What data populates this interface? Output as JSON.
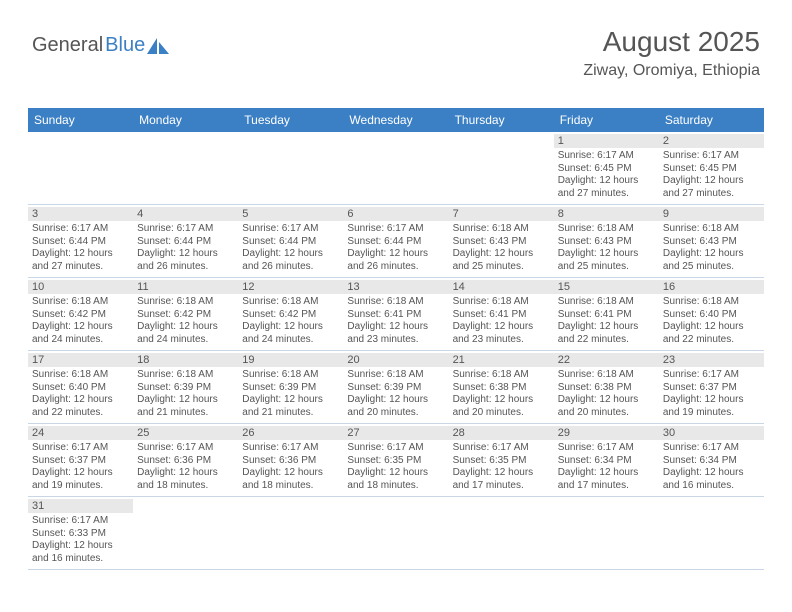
{
  "logo": {
    "part1": "General",
    "part2": "Blue"
  },
  "header": {
    "title": "August 2025",
    "subtitle": "Ziway, Oromiya, Ethiopia"
  },
  "colors": {
    "header_bg": "#3b7fc4",
    "header_text": "#ffffff",
    "daynum_bg": "#e8e8e8",
    "text": "#555555",
    "border": "#c8d6e5"
  },
  "day_labels": [
    "Sunday",
    "Monday",
    "Tuesday",
    "Wednesday",
    "Thursday",
    "Friday",
    "Saturday"
  ],
  "weeks": [
    [
      null,
      null,
      null,
      null,
      null,
      {
        "n": "1",
        "sunrise": "Sunrise: 6:17 AM",
        "sunset": "Sunset: 6:45 PM",
        "day1": "Daylight: 12 hours",
        "day2": "and 27 minutes."
      },
      {
        "n": "2",
        "sunrise": "Sunrise: 6:17 AM",
        "sunset": "Sunset: 6:45 PM",
        "day1": "Daylight: 12 hours",
        "day2": "and 27 minutes."
      }
    ],
    [
      {
        "n": "3",
        "sunrise": "Sunrise: 6:17 AM",
        "sunset": "Sunset: 6:44 PM",
        "day1": "Daylight: 12 hours",
        "day2": "and 27 minutes."
      },
      {
        "n": "4",
        "sunrise": "Sunrise: 6:17 AM",
        "sunset": "Sunset: 6:44 PM",
        "day1": "Daylight: 12 hours",
        "day2": "and 26 minutes."
      },
      {
        "n": "5",
        "sunrise": "Sunrise: 6:17 AM",
        "sunset": "Sunset: 6:44 PM",
        "day1": "Daylight: 12 hours",
        "day2": "and 26 minutes."
      },
      {
        "n": "6",
        "sunrise": "Sunrise: 6:17 AM",
        "sunset": "Sunset: 6:44 PM",
        "day1": "Daylight: 12 hours",
        "day2": "and 26 minutes."
      },
      {
        "n": "7",
        "sunrise": "Sunrise: 6:18 AM",
        "sunset": "Sunset: 6:43 PM",
        "day1": "Daylight: 12 hours",
        "day2": "and 25 minutes."
      },
      {
        "n": "8",
        "sunrise": "Sunrise: 6:18 AM",
        "sunset": "Sunset: 6:43 PM",
        "day1": "Daylight: 12 hours",
        "day2": "and 25 minutes."
      },
      {
        "n": "9",
        "sunrise": "Sunrise: 6:18 AM",
        "sunset": "Sunset: 6:43 PM",
        "day1": "Daylight: 12 hours",
        "day2": "and 25 minutes."
      }
    ],
    [
      {
        "n": "10",
        "sunrise": "Sunrise: 6:18 AM",
        "sunset": "Sunset: 6:42 PM",
        "day1": "Daylight: 12 hours",
        "day2": "and 24 minutes."
      },
      {
        "n": "11",
        "sunrise": "Sunrise: 6:18 AM",
        "sunset": "Sunset: 6:42 PM",
        "day1": "Daylight: 12 hours",
        "day2": "and 24 minutes."
      },
      {
        "n": "12",
        "sunrise": "Sunrise: 6:18 AM",
        "sunset": "Sunset: 6:42 PM",
        "day1": "Daylight: 12 hours",
        "day2": "and 24 minutes."
      },
      {
        "n": "13",
        "sunrise": "Sunrise: 6:18 AM",
        "sunset": "Sunset: 6:41 PM",
        "day1": "Daylight: 12 hours",
        "day2": "and 23 minutes."
      },
      {
        "n": "14",
        "sunrise": "Sunrise: 6:18 AM",
        "sunset": "Sunset: 6:41 PM",
        "day1": "Daylight: 12 hours",
        "day2": "and 23 minutes."
      },
      {
        "n": "15",
        "sunrise": "Sunrise: 6:18 AM",
        "sunset": "Sunset: 6:41 PM",
        "day1": "Daylight: 12 hours",
        "day2": "and 22 minutes."
      },
      {
        "n": "16",
        "sunrise": "Sunrise: 6:18 AM",
        "sunset": "Sunset: 6:40 PM",
        "day1": "Daylight: 12 hours",
        "day2": "and 22 minutes."
      }
    ],
    [
      {
        "n": "17",
        "sunrise": "Sunrise: 6:18 AM",
        "sunset": "Sunset: 6:40 PM",
        "day1": "Daylight: 12 hours",
        "day2": "and 22 minutes."
      },
      {
        "n": "18",
        "sunrise": "Sunrise: 6:18 AM",
        "sunset": "Sunset: 6:39 PM",
        "day1": "Daylight: 12 hours",
        "day2": "and 21 minutes."
      },
      {
        "n": "19",
        "sunrise": "Sunrise: 6:18 AM",
        "sunset": "Sunset: 6:39 PM",
        "day1": "Daylight: 12 hours",
        "day2": "and 21 minutes."
      },
      {
        "n": "20",
        "sunrise": "Sunrise: 6:18 AM",
        "sunset": "Sunset: 6:39 PM",
        "day1": "Daylight: 12 hours",
        "day2": "and 20 minutes."
      },
      {
        "n": "21",
        "sunrise": "Sunrise: 6:18 AM",
        "sunset": "Sunset: 6:38 PM",
        "day1": "Daylight: 12 hours",
        "day2": "and 20 minutes."
      },
      {
        "n": "22",
        "sunrise": "Sunrise: 6:18 AM",
        "sunset": "Sunset: 6:38 PM",
        "day1": "Daylight: 12 hours",
        "day2": "and 20 minutes."
      },
      {
        "n": "23",
        "sunrise": "Sunrise: 6:17 AM",
        "sunset": "Sunset: 6:37 PM",
        "day1": "Daylight: 12 hours",
        "day2": "and 19 minutes."
      }
    ],
    [
      {
        "n": "24",
        "sunrise": "Sunrise: 6:17 AM",
        "sunset": "Sunset: 6:37 PM",
        "day1": "Daylight: 12 hours",
        "day2": "and 19 minutes."
      },
      {
        "n": "25",
        "sunrise": "Sunrise: 6:17 AM",
        "sunset": "Sunset: 6:36 PM",
        "day1": "Daylight: 12 hours",
        "day2": "and 18 minutes."
      },
      {
        "n": "26",
        "sunrise": "Sunrise: 6:17 AM",
        "sunset": "Sunset: 6:36 PM",
        "day1": "Daylight: 12 hours",
        "day2": "and 18 minutes."
      },
      {
        "n": "27",
        "sunrise": "Sunrise: 6:17 AM",
        "sunset": "Sunset: 6:35 PM",
        "day1": "Daylight: 12 hours",
        "day2": "and 18 minutes."
      },
      {
        "n": "28",
        "sunrise": "Sunrise: 6:17 AM",
        "sunset": "Sunset: 6:35 PM",
        "day1": "Daylight: 12 hours",
        "day2": "and 17 minutes."
      },
      {
        "n": "29",
        "sunrise": "Sunrise: 6:17 AM",
        "sunset": "Sunset: 6:34 PM",
        "day1": "Daylight: 12 hours",
        "day2": "and 17 minutes."
      },
      {
        "n": "30",
        "sunrise": "Sunrise: 6:17 AM",
        "sunset": "Sunset: 6:34 PM",
        "day1": "Daylight: 12 hours",
        "day2": "and 16 minutes."
      }
    ],
    [
      {
        "n": "31",
        "sunrise": "Sunrise: 6:17 AM",
        "sunset": "Sunset: 6:33 PM",
        "day1": "Daylight: 12 hours",
        "day2": "and 16 minutes."
      },
      null,
      null,
      null,
      null,
      null,
      null
    ]
  ]
}
